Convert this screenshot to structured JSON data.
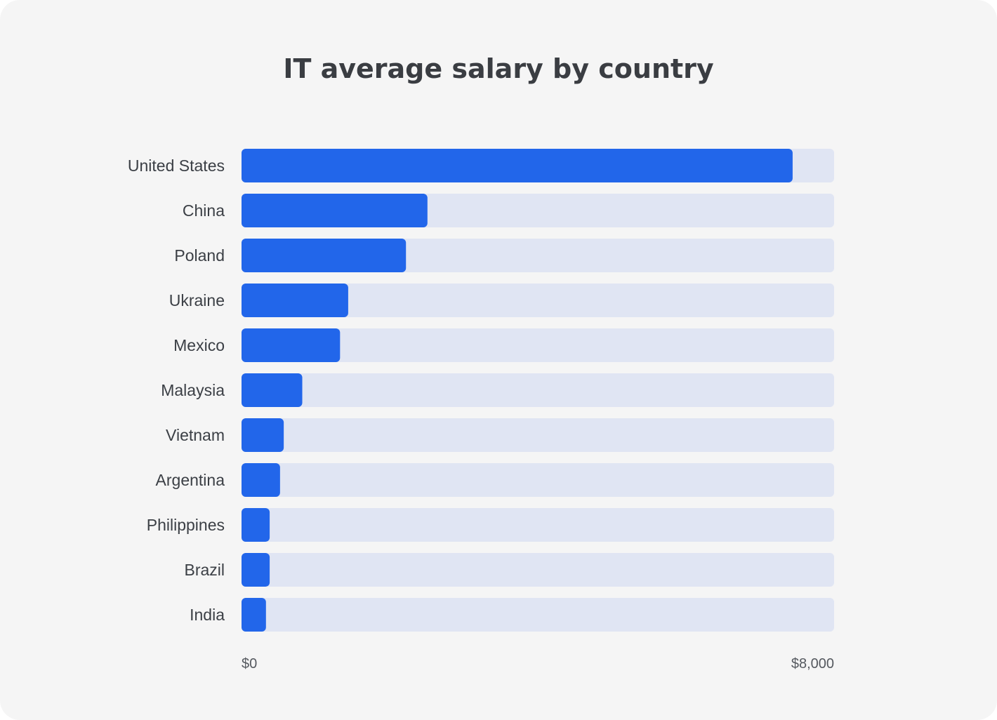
{
  "chart_data": {
    "type": "bar",
    "orientation": "horizontal",
    "title": "IT average salary by country",
    "xlabel": "",
    "ylabel": "",
    "xlim": [
      0,
      8000
    ],
    "x_tick_labels": [
      "$0",
      "$8,000"
    ],
    "categories": [
      "United States",
      "China",
      "Poland",
      "Ukraine",
      "Mexico",
      "Malaysia",
      "Vietnam",
      "Argentina",
      "Philippines",
      "Brazil",
      "India"
    ],
    "values": [
      7440,
      2510,
      2220,
      1440,
      1330,
      820,
      570,
      520,
      380,
      380,
      330
    ],
    "grid": false,
    "legend": "none",
    "colors": {
      "bar": "#2266ea",
      "track": "#e0e5f3",
      "background": "#f5f5f5",
      "title": "#3a3d42",
      "label": "#3b3f45"
    }
  }
}
